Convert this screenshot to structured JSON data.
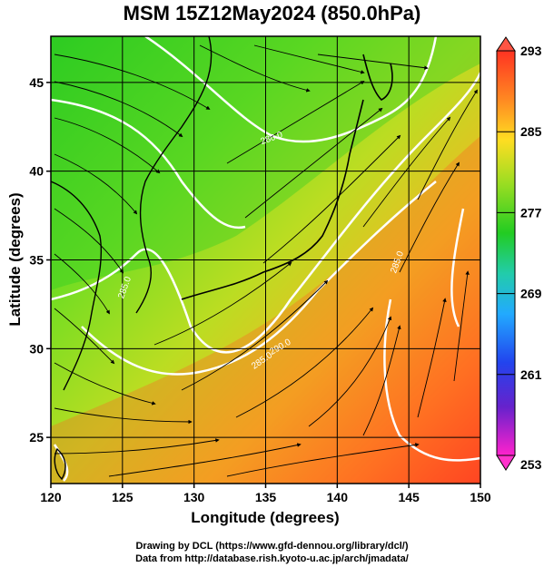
{
  "title": "MSM 15Z12May2024 (850.0hPa)",
  "chart_data": {
    "type": "heatmap",
    "xlabel": "Longitude (degrees)",
    "ylabel": "Latitude  (degrees)",
    "xlim": [
      120,
      150
    ],
    "ylim": [
      22.4,
      47.6
    ],
    "x_ticks": [
      "120",
      "125",
      "130",
      "135",
      "140",
      "145",
      "150"
    ],
    "y_ticks": [
      "25",
      "30",
      "35",
      "40",
      "45"
    ],
    "colorbar": {
      "min": 253,
      "max": 293,
      "tick_labels": [
        "293",
        "285",
        "277",
        "269",
        "261",
        "253"
      ]
    },
    "contour_labels": [
      "280.0",
      "285.0",
      "285.0",
      "290.0",
      "285.0"
    ],
    "grid": true
  },
  "credits": {
    "line1": "Drawing by DCL (https://www.gfd-dennou.org/library/dcl/)",
    "line2": "Data from http://database.rish.kyoto-u.ac.jp/arch/jmadata/"
  }
}
